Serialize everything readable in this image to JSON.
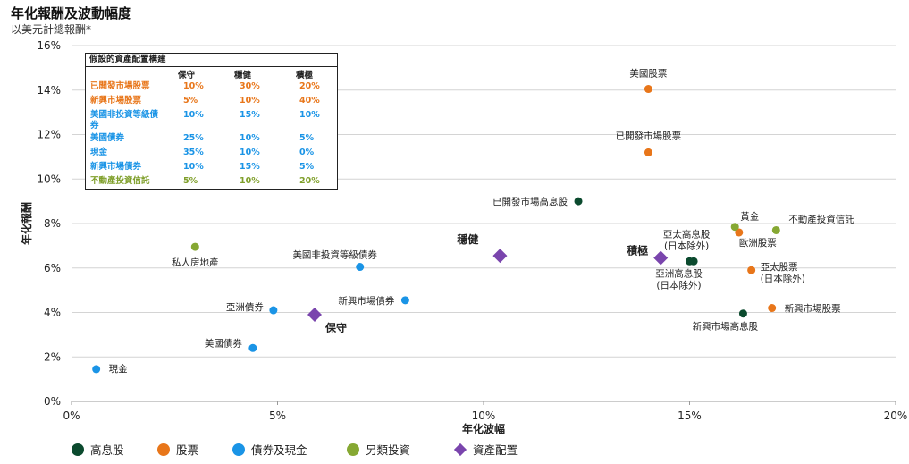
{
  "title": "年化報酬及波動幅度",
  "subtitle": "以美元計總報酬*",
  "colors": {
    "high_dividend": "#0b4a2e",
    "equity": "#e8761a",
    "bonds_cash": "#1a94e6",
    "alternatives": "#86a833",
    "allocation": "#7a45ad",
    "table_green": "#7f9f2a"
  },
  "allocation_table": {
    "title": "假設的資產配置構建",
    "columns": [
      "保守",
      "穩健",
      "積極"
    ],
    "rows": [
      {
        "name": "已開發市場股票",
        "values": [
          "10%",
          "30%",
          "20%"
        ],
        "color": "#e8761a"
      },
      {
        "name": "新興市場股票",
        "values": [
          "5%",
          "10%",
          "40%"
        ],
        "color": "#e8761a"
      },
      {
        "name": "美國非投資等級債券",
        "values": [
          "10%",
          "15%",
          "10%"
        ],
        "color": "#1a94e6"
      },
      {
        "name": "美國債券",
        "values": [
          "25%",
          "10%",
          "5%"
        ],
        "color": "#1a94e6"
      },
      {
        "name": "現金",
        "values": [
          "35%",
          "10%",
          "0%"
        ],
        "color": "#1a94e6"
      },
      {
        "name": "新興市場債券",
        "values": [
          "10%",
          "15%",
          "5%"
        ],
        "color": "#1a94e6"
      },
      {
        "name": "不動產投資信託",
        "values": [
          "5%",
          "10%",
          "20%"
        ],
        "color": "#7f9f2a"
      }
    ]
  },
  "chart_data": {
    "type": "scatter",
    "title": "年化報酬及波動幅度",
    "subtitle": "以美元計總報酬*",
    "xlabel": "年化波幅",
    "ylabel": "年化報酬",
    "xlim": [
      0,
      20
    ],
    "ylim": [
      0,
      16
    ],
    "x_ticks": [
      "0%",
      "5%",
      "10%",
      "15%",
      "20%"
    ],
    "y_ticks": [
      "0%",
      "2%",
      "4%",
      "6%",
      "8%",
      "10%",
      "12%",
      "14%",
      "16%"
    ],
    "legend_position": "bottom",
    "series": [
      {
        "name": "高息股",
        "marker": "circle",
        "color": "#0b4a2e",
        "points": [
          {
            "label": "已開發市場高息股",
            "x": 12.3,
            "y": 9.0
          },
          {
            "label": "亞太高息股\n(日本除外)",
            "x": 15.1,
            "y": 6.3
          },
          {
            "label": "亞洲高息股\n(日本除外)",
            "x": 15.0,
            "y": 6.3
          },
          {
            "label": "新興市場高息股",
            "x": 16.3,
            "y": 3.95
          }
        ]
      },
      {
        "name": "股票",
        "marker": "circle",
        "color": "#e8761a",
        "points": [
          {
            "label": "美國股票",
            "x": 14.0,
            "y": 14.05
          },
          {
            "label": "已開發市場股票",
            "x": 14.0,
            "y": 11.2
          },
          {
            "label": "歐洲股票",
            "x": 16.2,
            "y": 7.6
          },
          {
            "label": "亞太股票\n(日本除外)",
            "x": 16.5,
            "y": 5.9
          },
          {
            "label": "新興市場股票",
            "x": 17.0,
            "y": 4.2
          }
        ]
      },
      {
        "name": "債券及現金",
        "marker": "circle",
        "color": "#1a94e6",
        "points": [
          {
            "label": "美國非投資等級債券",
            "x": 7.0,
            "y": 6.05
          },
          {
            "label": "新興市場債券",
            "x": 8.1,
            "y": 4.55
          },
          {
            "label": "亞洲債券",
            "x": 4.9,
            "y": 4.1
          },
          {
            "label": "美國債券",
            "x": 4.4,
            "y": 2.4
          },
          {
            "label": "現金",
            "x": 0.6,
            "y": 1.45
          }
        ]
      },
      {
        "name": "另類投資",
        "marker": "circle",
        "color": "#86a833",
        "points": [
          {
            "label": "私人房地產",
            "x": 3.0,
            "y": 6.95
          },
          {
            "label": "黃金",
            "x": 16.1,
            "y": 7.85
          },
          {
            "label": "不動產投資信託",
            "x": 17.1,
            "y": 7.7
          }
        ]
      },
      {
        "name": "資產配置",
        "marker": "diamond",
        "color": "#7a45ad",
        "points": [
          {
            "label": "保守",
            "x": 5.9,
            "y": 3.9
          },
          {
            "label": "穩健",
            "x": 10.4,
            "y": 6.55
          },
          {
            "label": "積極",
            "x": 14.3,
            "y": 6.45
          }
        ]
      }
    ]
  }
}
